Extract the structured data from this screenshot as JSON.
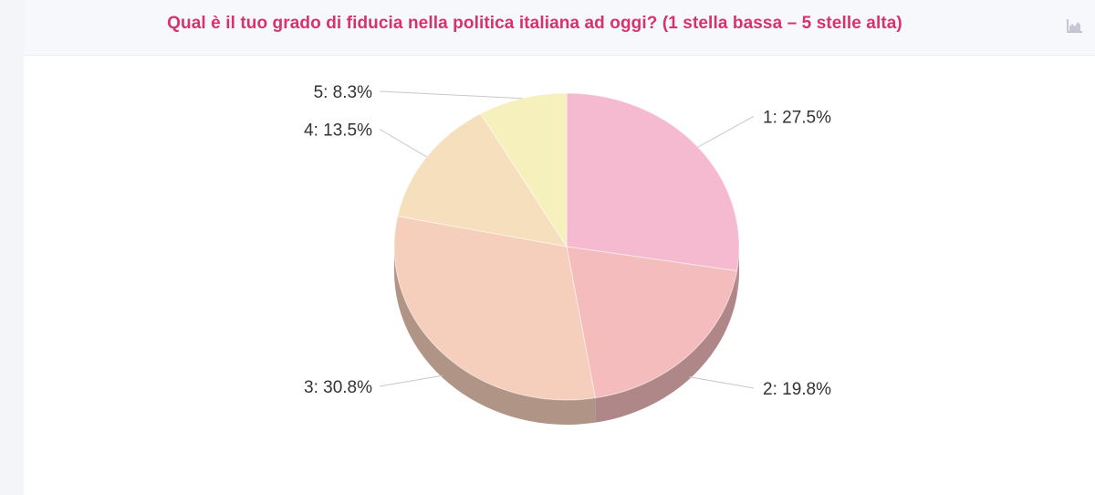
{
  "header": {
    "title": "Qual è il tuo grado di fiducia nella politica italiana ad oggi? (1 stella bassa – 5 stelle alta)",
    "chart_type_icon": "area-chart-icon"
  },
  "chart_data": {
    "type": "pie",
    "title": "Qual è il tuo grado di fiducia nella politica italiana ad oggi? (1 stella bassa – 5 stelle alta)",
    "three_d": true,
    "slices": [
      {
        "label": "1",
        "value": 27.5,
        "display": "1: 27.5%",
        "color": "#f6bad0"
      },
      {
        "label": "2",
        "value": 19.8,
        "display": "2: 19.8%",
        "color": "#f5bcbd"
      },
      {
        "label": "3",
        "value": 30.8,
        "display": "3: 30.8%",
        "color": "#f5cfbc"
      },
      {
        "label": "4",
        "value": 13.5,
        "display": "4: 13.5%",
        "color": "#f6dfbc"
      },
      {
        "label": "5",
        "value": 8.3,
        "display": "5: 8.3%",
        "color": "#f6f0bd"
      }
    ]
  }
}
